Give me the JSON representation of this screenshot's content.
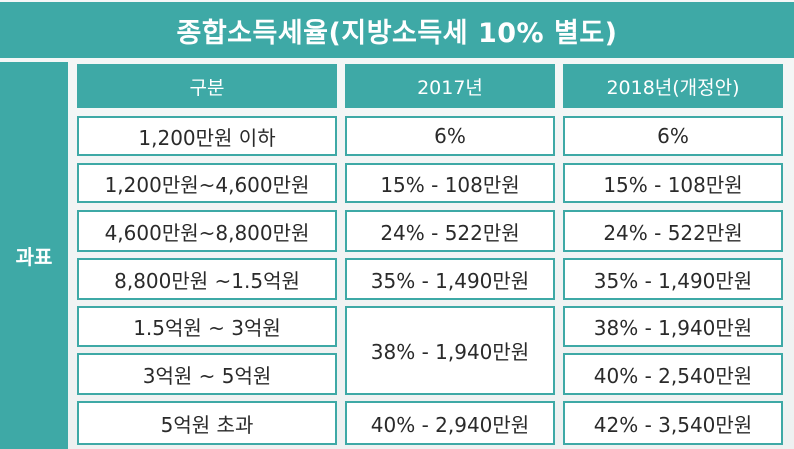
{
  "title": "종합소득세율(지방소득세 10% 별도)",
  "side_label": "과표",
  "columns": [
    "구분",
    "2017년",
    "2018년(개정안)"
  ],
  "rows": [
    {
      "bracket": "1,200만원 이하",
      "y2017": "6%",
      "y2018": "6%"
    },
    {
      "bracket": "1,200만원~4,600만원",
      "y2017": "15% - 108만원",
      "y2018": "15% - 108만원"
    },
    {
      "bracket": "4,600만원~8,800만원",
      "y2017": "24% - 522만원",
      "y2018": "24% - 522만원"
    },
    {
      "bracket": "8,800만원 ~1.5억원",
      "y2017": "35% - 1,490만원",
      "y2018": "35% - 1,490만원"
    },
    {
      "bracket": "1.5억원 ~ 3억원",
      "y2017": "38% - 1,940만원",
      "y2018": "38% - 1,940만원"
    },
    {
      "bracket": "3억원 ~ 5억원",
      "y2018": "40% - 2,540만원"
    },
    {
      "bracket": "5억원 초과",
      "y2017": "40% - 2,940만원",
      "y2018": "42% - 3,540만원"
    }
  ],
  "colors": {
    "accent": "#3ea9a6",
    "cell_background": "#ffffff",
    "text": "#2a2a2a"
  }
}
